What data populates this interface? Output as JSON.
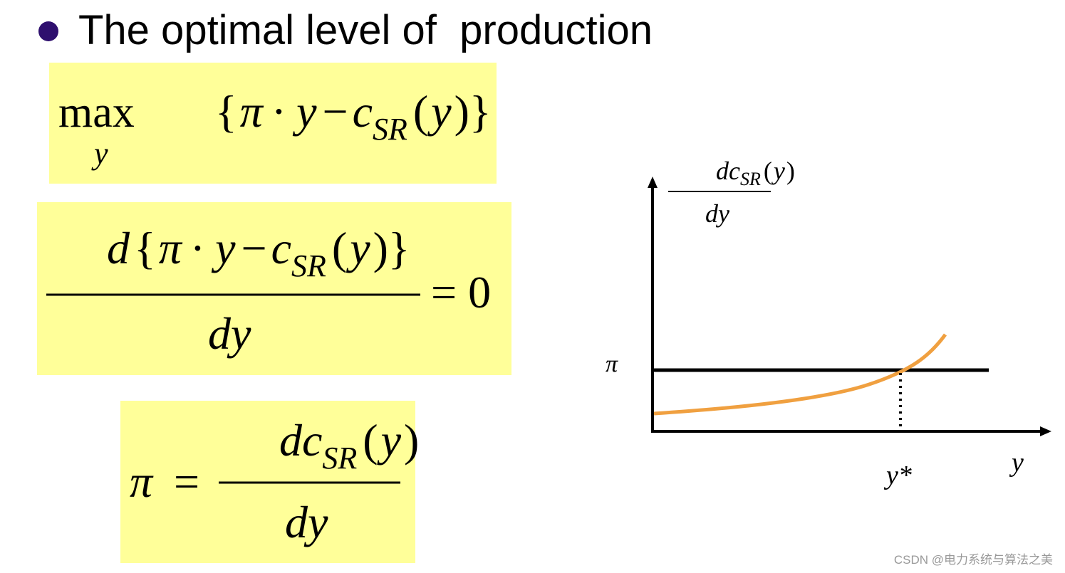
{
  "header": {
    "title": "The optimal level of  production"
  },
  "formula_1": {
    "operator": "max",
    "operator_subscript": "y",
    "parts": [
      "{",
      "π",
      "·",
      "y",
      "−",
      "c",
      "SR",
      "(",
      "y",
      ")}"
    ]
  },
  "formula_2": {
    "numerator": [
      "d",
      "{",
      "π",
      "·",
      "y",
      "−",
      "c",
      "SR",
      "(",
      "y",
      ")}"
    ],
    "denominator": "dy",
    "equals": "= 0"
  },
  "formula_3": {
    "left": "π",
    "equals": "=",
    "numerator": [
      "dc",
      "SR",
      "(",
      "y",
      ")"
    ],
    "denominator": "dy"
  },
  "diagram": {
    "y_axis_label": {
      "numerator": [
        "dc",
        "SR",
        "(",
        "y",
        ")"
      ],
      "denominator": "dy"
    },
    "price_label": "π",
    "optimum_label": "y*",
    "x_axis_label": "y"
  },
  "watermark": "CSDN @电力系统与算法之美"
}
